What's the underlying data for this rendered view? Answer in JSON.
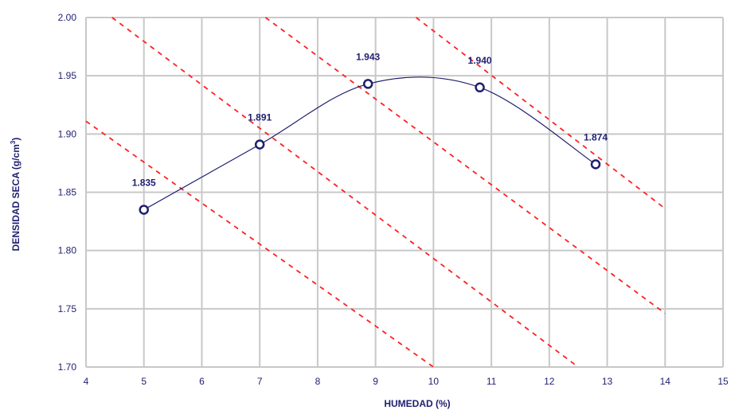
{
  "chart_data": {
    "type": "line",
    "xlabel": "HUMEDAD (%)",
    "ylabel": "DENSIDAD SECA (g/cm",
    "ylabel_superscript": "3",
    "ylabel_suffix": ")",
    "xlim": [
      4,
      15
    ],
    "ylim": [
      1.7,
      2.0
    ],
    "x_ticks": [
      "4",
      "5",
      "6",
      "7",
      "8",
      "9",
      "10",
      "11",
      "12",
      "13",
      "14",
      "15"
    ],
    "y_ticks": [
      "1.70",
      "1.75",
      "1.80",
      "1.85",
      "1.90",
      "1.95",
      "2.00"
    ],
    "grid": true,
    "series": [
      {
        "x": [
          5.0,
          7.0,
          8.87,
          10.8,
          12.8
        ],
        "y": [
          1.835,
          1.891,
          1.943,
          1.94,
          1.874
        ],
        "labels": [
          "1.835",
          "1.891",
          "1.943",
          "1.940",
          "1.874"
        ],
        "color": "#1f1f70",
        "marker": "circle-open"
      }
    ],
    "reference_lines": [
      {
        "style": "dashed",
        "color": "#ff2020",
        "points": [
          [
            4.0,
            1.911
          ],
          [
            10.0,
            1.7
          ]
        ]
      },
      {
        "style": "dashed",
        "color": "#ff2020",
        "points": [
          [
            4.45,
            2.0
          ],
          [
            12.5,
            1.7
          ]
        ]
      },
      {
        "style": "dashed",
        "color": "#ff2020",
        "points": [
          [
            7.1,
            2.0
          ],
          [
            14.0,
            1.746
          ]
        ]
      },
      {
        "style": "dashed",
        "color": "#ff2020",
        "points": [
          [
            9.7,
            2.0
          ],
          [
            14.0,
            1.836
          ]
        ]
      }
    ],
    "colors": {
      "axis_text": "#1f1f70",
      "grid": "#c8c8c8",
      "curve": "#1f1f70",
      "saturation_lines": "#ff2020"
    }
  }
}
